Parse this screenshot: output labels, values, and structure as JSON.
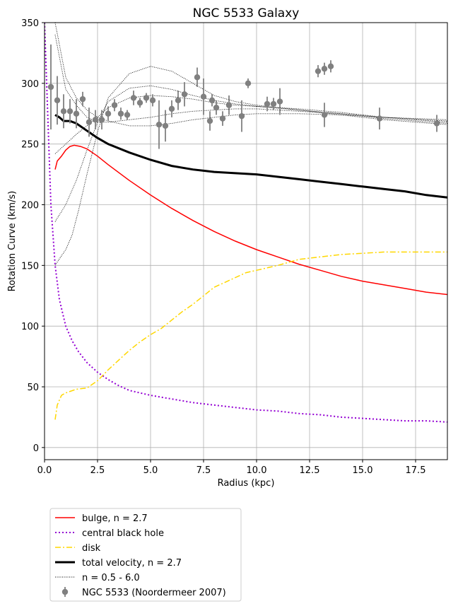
{
  "chart_data": {
    "type": "line",
    "title": "NGC 5533 Galaxy",
    "xlabel": "Radius (kpc)",
    "ylabel": "Rotation Curve (km/s)",
    "xlim": [
      0,
      19
    ],
    "ylim": [
      -10,
      350
    ],
    "xticks": [
      0.0,
      2.5,
      5.0,
      7.5,
      10.0,
      12.5,
      15.0,
      17.5
    ],
    "xtick_labels": [
      "0.0",
      "2.5",
      "5.0",
      "7.5",
      "10.0",
      "12.5",
      "15.0",
      "17.5"
    ],
    "yticks": [
      0,
      50,
      100,
      150,
      200,
      250,
      300,
      350
    ],
    "ytick_labels": [
      "0",
      "50",
      "100",
      "150",
      "200",
      "250",
      "300",
      "350"
    ],
    "grid": true,
    "legend_position": "below plot, left",
    "series": [
      {
        "name": "bulge, n = 2.7",
        "style": "solid",
        "color": "#ff0000",
        "x": [
          0.5,
          0.6,
          0.8,
          1.0,
          1.2,
          1.4,
          1.7,
          2.0,
          2.5,
          3.0,
          4.0,
          5.0,
          6.0,
          7.0,
          8.0,
          9.0,
          10.0,
          11.0,
          12.0,
          13.0,
          14.0,
          15.0,
          16.0,
          17.0,
          18.0,
          19.0
        ],
        "y": [
          229,
          236,
          240,
          245,
          248,
          249,
          248,
          246,
          240,
          233,
          220,
          208,
          197,
          187,
          178,
          170,
          163,
          157,
          151,
          146,
          141,
          137,
          134,
          131,
          128,
          126
        ]
      },
      {
        "name": "central black hole",
        "style": "dotted",
        "color": "#9400d3",
        "x": [
          0.0,
          0.2,
          0.3,
          0.5,
          0.7,
          1.0,
          1.3,
          1.6,
          2.0,
          2.5,
          3.0,
          3.5,
          4.0,
          5.0,
          6.0,
          7.0,
          8.0,
          9.0,
          10.0,
          11.0,
          12.0,
          13.0,
          14.0,
          15.0,
          16.0,
          17.0,
          18.0,
          19.0
        ],
        "y": [
          350,
          250,
          200,
          150,
          122,
          100,
          88,
          79,
          70,
          62,
          56,
          51,
          47,
          43,
          40,
          37,
          35,
          33,
          31,
          30,
          28,
          27,
          25,
          24,
          23,
          22,
          22,
          21
        ]
      },
      {
        "name": "disk",
        "style": "dashdot",
        "color": "#ffd700",
        "x": [
          0.5,
          0.6,
          0.8,
          1.0,
          1.5,
          2.0,
          2.5,
          3.0,
          3.5,
          4.0,
          4.5,
          5.0,
          5.5,
          6.0,
          6.5,
          7.0,
          7.5,
          8.0,
          8.5,
          9.0,
          9.5,
          10.0,
          11.0,
          12.0,
          13.0,
          14.0,
          15.0,
          16.0,
          17.0,
          18.0,
          19.0
        ],
        "y": [
          23,
          35,
          43,
          45,
          48,
          49,
          55,
          64,
          72,
          80,
          87,
          93,
          98,
          105,
          112,
          118,
          125,
          132,
          136,
          140,
          144,
          146,
          150,
          155,
          157,
          159,
          160,
          161,
          161,
          161,
          161
        ]
      },
      {
        "name": "total velocity, n = 2.7",
        "style": "solid-thick",
        "color": "#000000",
        "x": [
          0.5,
          0.7,
          0.9,
          1.2,
          1.5,
          2.0,
          2.5,
          3.0,
          4.0,
          5.0,
          6.0,
          7.0,
          7.5,
          8.0,
          9.0,
          10.0,
          11.0,
          12.0,
          13.0,
          14.0,
          15.0,
          16.0,
          17.0,
          18.0,
          19.0
        ],
        "y": [
          274,
          272,
          269,
          269,
          267,
          261,
          255,
          250,
          243,
          237,
          232,
          229,
          228,
          227,
          226,
          225,
          223,
          221,
          219,
          217,
          215,
          213,
          211,
          208,
          206
        ]
      },
      {
        "name": "n = 0.5 - 6.0",
        "style": "dotted-thin",
        "color": "#000000",
        "lines": [
          {
            "x": [
              0.5,
              1.0,
              1.5,
              2.0,
              2.5,
              3.0,
              4.0,
              5.0,
              6.0,
              7.0,
              8.0,
              9.0,
              10.0,
              12.0,
              14.0,
              16.0,
              19.0
            ],
            "y": [
              350,
              305,
              288,
              278,
              272,
              269,
              265,
              265,
              267,
              270,
              272,
              274,
              275,
              275,
              274,
              272,
              270
            ]
          },
          {
            "x": [
              0.5,
              1.0,
              1.5,
              2.0,
              2.5,
              3.0,
              4.0,
              5.0,
              6.0,
              7.0,
              8.0,
              9.0,
              10.0,
              12.0,
              14.0,
              16.0,
              19.0
            ],
            "y": [
              340,
              295,
              282,
              272,
              268,
              268,
              270,
              272,
              275,
              277,
              278,
              279,
              279,
              277,
              275,
              272,
              269
            ]
          },
          {
            "x": [
              0.5,
              1.0,
              1.5,
              2.0,
              2.5,
              3.0,
              4.0,
              5.0,
              6.0,
              7.0,
              8.0,
              9.0,
              10.0,
              12.0,
              14.0,
              16.0,
              19.0
            ],
            "y": [
              242,
              250,
              258,
              265,
              272,
              280,
              288,
              290,
              289,
              287,
              284,
              282,
              281,
              279,
              276,
              272,
              268
            ]
          },
          {
            "x": [
              0.5,
              1.0,
              1.5,
              2.0,
              2.5,
              3.0,
              4.0,
              5.0,
              6.0,
              7.0,
              8.0,
              9.0,
              10.0,
              12.0,
              14.0,
              16.0,
              19.0
            ],
            "y": [
              186,
              200,
              220,
              245,
              268,
              285,
              296,
              298,
              295,
              290,
              286,
              283,
              281,
              278,
              275,
              271,
              267
            ]
          },
          {
            "x": [
              0.5,
              0.8,
              1.0,
              1.3,
              1.6,
              2.0,
              2.5,
              3.0,
              4.0,
              5.0,
              6.0,
              7.0,
              8.0,
              9.0,
              10.0,
              12.0,
              14.0,
              16.0,
              19.0
            ],
            "y": [
              150,
              158,
              163,
              175,
              195,
              225,
              260,
              288,
              308,
              314,
              310,
              300,
              290,
              285,
              282,
              278,
              274,
              270,
              266
            ]
          }
        ]
      },
      {
        "name": "NGC 5533 (Noordermeer 2007)",
        "style": "errorbar",
        "color": "#808080",
        "points": [
          {
            "x": 0.3,
            "y": 297,
            "err": 35
          },
          {
            "x": 0.6,
            "y": 286,
            "err": 20
          },
          {
            "x": 0.9,
            "y": 277,
            "err": 14
          },
          {
            "x": 1.2,
            "y": 277,
            "err": 10
          },
          {
            "x": 1.5,
            "y": 275,
            "err": 12
          },
          {
            "x": 1.8,
            "y": 287,
            "err": 6
          },
          {
            "x": 2.1,
            "y": 268,
            "err": 12
          },
          {
            "x": 2.4,
            "y": 270,
            "err": 8
          },
          {
            "x": 2.7,
            "y": 270,
            "err": 8
          },
          {
            "x": 3.0,
            "y": 275,
            "err": 6
          },
          {
            "x": 3.3,
            "y": 282,
            "err": 5
          },
          {
            "x": 3.6,
            "y": 275,
            "err": 5
          },
          {
            "x": 3.9,
            "y": 274,
            "err": 4
          },
          {
            "x": 4.2,
            "y": 288,
            "err": 6
          },
          {
            "x": 4.5,
            "y": 284,
            "err": 4
          },
          {
            "x": 4.8,
            "y": 288,
            "err": 4
          },
          {
            "x": 5.1,
            "y": 286,
            "err": 5
          },
          {
            "x": 5.4,
            "y": 266,
            "err": 20
          },
          {
            "x": 5.7,
            "y": 265,
            "err": 13
          },
          {
            "x": 6.0,
            "y": 279,
            "err": 7
          },
          {
            "x": 6.3,
            "y": 286,
            "err": 8
          },
          {
            "x": 6.6,
            "y": 291,
            "err": 10
          },
          {
            "x": 7.2,
            "y": 305,
            "err": 8
          },
          {
            "x": 7.5,
            "y": 289,
            "err": 15
          },
          {
            "x": 7.8,
            "y": 269,
            "err": 8
          },
          {
            "x": 7.9,
            "y": 286,
            "err": 5
          },
          {
            "x": 8.1,
            "y": 280,
            "err": 6
          },
          {
            "x": 8.4,
            "y": 271,
            "err": 6
          },
          {
            "x": 8.7,
            "y": 282,
            "err": 8
          },
          {
            "x": 9.3,
            "y": 273,
            "err": 13
          },
          {
            "x": 9.6,
            "y": 300,
            "err": 4
          },
          {
            "x": 10.5,
            "y": 283,
            "err": 6
          },
          {
            "x": 10.8,
            "y": 283,
            "err": 5
          },
          {
            "x": 11.1,
            "y": 285,
            "err": 11
          },
          {
            "x": 12.9,
            "y": 310,
            "err": 5
          },
          {
            "x": 13.2,
            "y": 312,
            "err": 5
          },
          {
            "x": 13.5,
            "y": 314,
            "err": 5
          },
          {
            "x": 13.2,
            "y": 274,
            "err": 10
          },
          {
            "x": 15.8,
            "y": 271,
            "err": 9
          },
          {
            "x": 18.5,
            "y": 267,
            "err": 7
          }
        ]
      }
    ]
  }
}
